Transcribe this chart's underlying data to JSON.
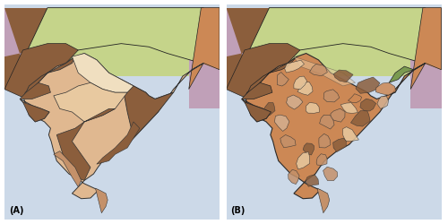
{
  "figure_width": 5.0,
  "figure_height": 2.5,
  "dpi": 100,
  "background_color": "#ffffff",
  "border_color": "#666666",
  "border_linewidth": 0.8,
  "label_A": "(A)",
  "label_B": "(B)",
  "label_fontsize": 7,
  "label_color": "#000000",
  "colors": {
    "ocean": "#ccd9e8",
    "himalaya_green": "#c5d48a",
    "brown_dark": "#8B5E3C",
    "brown_medium": "#C4916A",
    "brown_light": "#E8C9A0",
    "brown_very_light": "#F0DFC0",
    "brown_peach": "#E0B890",
    "brown_orange": "#CC8855",
    "grey_brown": "#A07850",
    "green_NE": "#7A9A50",
    "purple_top": "#C0A0B8",
    "tan_light": "#D4B090"
  },
  "lon_min": 65.0,
  "lon_max": 100.0,
  "lat_min": 5.0,
  "lat_max": 38.0
}
